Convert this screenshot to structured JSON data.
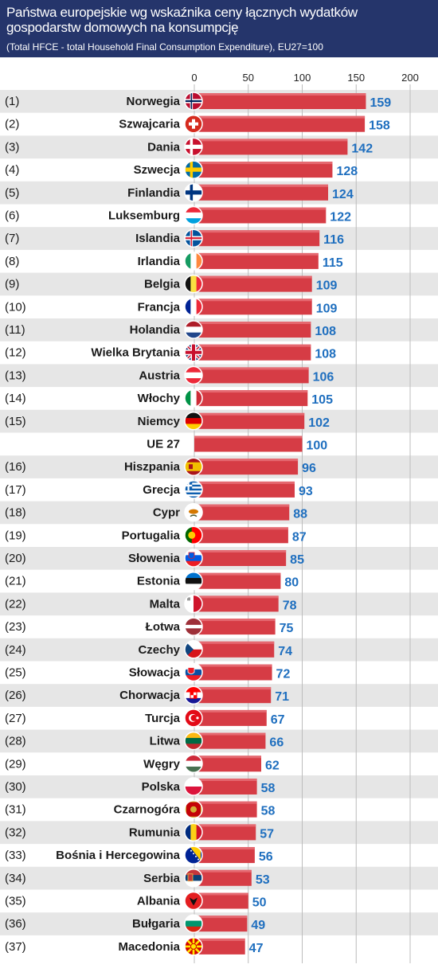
{
  "header": {
    "title": "Państwa europejskie wg wskaźnika ceny łącznych wydatków gospodarstw domowych na konsumpcję",
    "subtitle": "(Total HFCE - total Household Final Consumption Expenditure), EU27=100"
  },
  "colors": {
    "header_bg": "#25356b",
    "bar": "#d63c45",
    "value_label": "#1f6fbf",
    "stripe": "#e6e6e6"
  },
  "chart_data": {
    "type": "bar",
    "orientation": "horizontal",
    "title": "Państwa europejskie wg wskaźnika ceny łącznych wydatków gospodarstw domowych na konsumpcję",
    "subtitle": "(Total HFCE - total Household Final Consumption Expenditure), EU27=100",
    "xlim": [
      0,
      200
    ],
    "ticks": [
      "0",
      "50",
      "100",
      "150",
      "200"
    ],
    "grid": true,
    "rows": [
      {
        "rank": "(1)",
        "country": "Norwegia",
        "value": 159,
        "flag": "norway-flag-icon"
      },
      {
        "rank": "(2)",
        "country": "Szwajcaria",
        "value": 158,
        "flag": "switzerland-flag-icon"
      },
      {
        "rank": "(3)",
        "country": "Dania",
        "value": 142,
        "flag": "denmark-flag-icon"
      },
      {
        "rank": "(4)",
        "country": "Szwecja",
        "value": 128,
        "flag": "sweden-flag-icon"
      },
      {
        "rank": "(5)",
        "country": "Finlandia",
        "value": 124,
        "flag": "finland-flag-icon"
      },
      {
        "rank": "(6)",
        "country": "Luksemburg",
        "value": 122,
        "flag": "luxembourg-flag-icon"
      },
      {
        "rank": "(7)",
        "country": "Islandia",
        "value": 116,
        "flag": "iceland-flag-icon"
      },
      {
        "rank": "(8)",
        "country": "Irlandia",
        "value": 115,
        "flag": "ireland-flag-icon"
      },
      {
        "rank": "(9)",
        "country": "Belgia",
        "value": 109,
        "flag": "belgium-flag-icon"
      },
      {
        "rank": "(10)",
        "country": "Francja",
        "value": 109,
        "flag": "france-flag-icon"
      },
      {
        "rank": "(11)",
        "country": "Holandia",
        "value": 108,
        "flag": "netherlands-flag-icon"
      },
      {
        "rank": "(12)",
        "country": "Wielka Brytania",
        "value": 108,
        "flag": "uk-flag-icon"
      },
      {
        "rank": "(13)",
        "country": "Austria",
        "value": 106,
        "flag": "austria-flag-icon"
      },
      {
        "rank": "(14)",
        "country": "Włochy",
        "value": 105,
        "flag": "italy-flag-icon"
      },
      {
        "rank": "(15)",
        "country": "Niemcy",
        "value": 102,
        "flag": "germany-flag-icon"
      },
      {
        "rank": "",
        "country": "UE 27",
        "value": 100,
        "flag": ""
      },
      {
        "rank": "(16)",
        "country": "Hiszpania",
        "value": 96,
        "flag": "spain-flag-icon"
      },
      {
        "rank": "(17)",
        "country": "Grecja",
        "value": 93,
        "flag": "greece-flag-icon"
      },
      {
        "rank": "(18)",
        "country": "Cypr",
        "value": 88,
        "flag": "cyprus-flag-icon"
      },
      {
        "rank": "(19)",
        "country": "Portugalia",
        "value": 87,
        "flag": "portugal-flag-icon"
      },
      {
        "rank": "(20)",
        "country": "Słowenia",
        "value": 85,
        "flag": "slovenia-flag-icon"
      },
      {
        "rank": "(21)",
        "country": "Estonia",
        "value": 80,
        "flag": "estonia-flag-icon"
      },
      {
        "rank": "(22)",
        "country": "Malta",
        "value": 78,
        "flag": "malta-flag-icon"
      },
      {
        "rank": "(23)",
        "country": "Łotwa",
        "value": 75,
        "flag": "latvia-flag-icon"
      },
      {
        "rank": "(24)",
        "country": "Czechy",
        "value": 74,
        "flag": "czech-flag-icon"
      },
      {
        "rank": "(25)",
        "country": "Słowacja",
        "value": 72,
        "flag": "slovakia-flag-icon"
      },
      {
        "rank": "(26)",
        "country": "Chorwacja",
        "value": 71,
        "flag": "croatia-flag-icon"
      },
      {
        "rank": "(27)",
        "country": "Turcja",
        "value": 67,
        "flag": "turkey-flag-icon"
      },
      {
        "rank": "(28)",
        "country": "Litwa",
        "value": 66,
        "flag": "lithuania-flag-icon"
      },
      {
        "rank": "(29)",
        "country": "Węgry",
        "value": 62,
        "flag": "hungary-flag-icon"
      },
      {
        "rank": "(30)",
        "country": "Polska",
        "value": 58,
        "flag": "poland-flag-icon"
      },
      {
        "rank": "(31)",
        "country": "Czarnogóra",
        "value": 58,
        "flag": "montenegro-flag-icon"
      },
      {
        "rank": "(32)",
        "country": "Rumunia",
        "value": 57,
        "flag": "romania-flag-icon"
      },
      {
        "rank": "(33)",
        "country": "Bośnia i Hercegowina",
        "value": 56,
        "flag": "bosnia-flag-icon"
      },
      {
        "rank": "(34)",
        "country": "Serbia",
        "value": 53,
        "flag": "serbia-flag-icon"
      },
      {
        "rank": "(35)",
        "country": "Albania",
        "value": 50,
        "flag": "albania-flag-icon"
      },
      {
        "rank": "(36)",
        "country": "Bułgaria",
        "value": 49,
        "flag": "bulgaria-flag-icon"
      },
      {
        "rank": "(37)",
        "country": "Macedonia",
        "value": 47,
        "flag": "macedonia-flag-icon"
      }
    ]
  }
}
